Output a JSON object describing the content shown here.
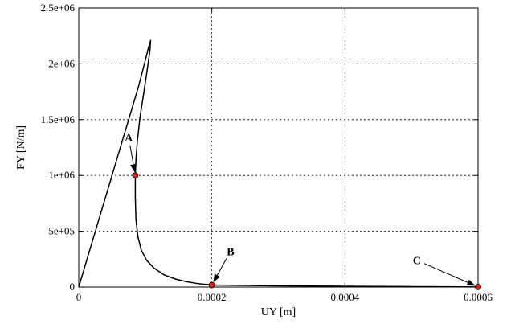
{
  "chart_data": {
    "type": "line",
    "title": "",
    "xlabel": "UY [m]",
    "ylabel": "FY [N/m]",
    "xlim": [
      0,
      0.0006
    ],
    "ylim": [
      0,
      2500000
    ],
    "x_ticks": [
      0,
      0.0002,
      0.0004,
      0.0006
    ],
    "x_tick_labels": [
      "0",
      "0.0002",
      "0.0004",
      "0.0006"
    ],
    "y_ticks": [
      0,
      500000,
      1000000,
      1500000,
      2000000,
      2500000
    ],
    "y_tick_labels": [
      "0",
      "5e+05",
      "1e+06",
      "1.5e+06",
      "2e+06",
      "2.5e+06"
    ],
    "grid": true,
    "series": [
      {
        "color": "#000000",
        "x": [
          0,
          3e-05,
          6e-05,
          9e-05,
          0.0001,
          0.000105,
          0.000108,
          0.000107,
          0.000103,
          9.8e-05,
          9.2e-05,
          8.8e-05,
          8.6e-05,
          8.5e-05,
          8.5e-05,
          8.6e-05,
          8.9e-05,
          9.4e-05,
          0.000102,
          0.000113,
          0.000128,
          0.000145,
          0.000162,
          0.000178,
          0.00019,
          0.0002,
          0.00025,
          0.0003,
          0.00035,
          0.0004,
          0.00045,
          0.0005,
          0.00055,
          0.0006
        ],
        "y": [
          0,
          600000,
          1200000,
          1800000,
          2030000,
          2150000,
          2210000,
          2120000,
          1950000,
          1750000,
          1520000,
          1300000,
          1150000,
          1000000,
          800000,
          600000,
          450000,
          330000,
          240000,
          170000,
          110000,
          72000,
          48000,
          32000,
          24000,
          18000,
          14000,
          11000,
          9000,
          7000,
          5500,
          4000,
          2500,
          1000
        ]
      }
    ],
    "points": [
      {
        "label": "A",
        "x": 8.5e-05,
        "y": 1000000,
        "label_x": 7.5e-05,
        "label_y": 1340000
      },
      {
        "label": "B",
        "x": 0.0002,
        "y": 18000,
        "label_x": 0.000228,
        "label_y": 320000
      },
      {
        "label": "C",
        "x": 0.0006,
        "y": 1000,
        "label_x": 0.000508,
        "label_y": 240000
      }
    ],
    "marker_color": "#cc2222"
  }
}
